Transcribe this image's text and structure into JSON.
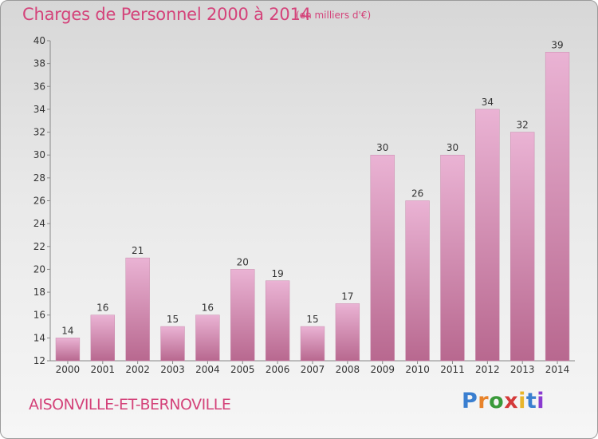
{
  "title": "Charges de Personnel 2000 à 2014",
  "subtitle": "(en milliers d'€)",
  "commune": "AISONVILLE-ET-BERNOVILLE",
  "logo": {
    "letters": [
      "P",
      "r",
      "o",
      "x",
      "i",
      "t",
      "i"
    ],
    "colors": [
      "#3a7fd0",
      "#e8832a",
      "#3a9a3a",
      "#d43a3a",
      "#e8b52a",
      "#3a7fd0",
      "#8a3ad0"
    ]
  },
  "colors": {
    "bar_light": "#eab3d4",
    "bar_dark": "#b8688f",
    "accent": "#d4437a"
  },
  "chart_data": {
    "type": "bar",
    "categories": [
      "2000",
      "2001",
      "2002",
      "2003",
      "2004",
      "2005",
      "2006",
      "2007",
      "2008",
      "2009",
      "2010",
      "2011",
      "2012",
      "2013",
      "2014"
    ],
    "values": [
      14,
      16,
      21,
      15,
      16,
      20,
      19,
      15,
      17,
      30,
      26,
      30,
      34,
      32,
      39
    ],
    "ylim": [
      12,
      40
    ],
    "yticks": [
      12,
      14,
      16,
      18,
      20,
      22,
      24,
      26,
      28,
      30,
      32,
      34,
      36,
      38,
      40
    ],
    "grid": false,
    "legend": "none"
  }
}
